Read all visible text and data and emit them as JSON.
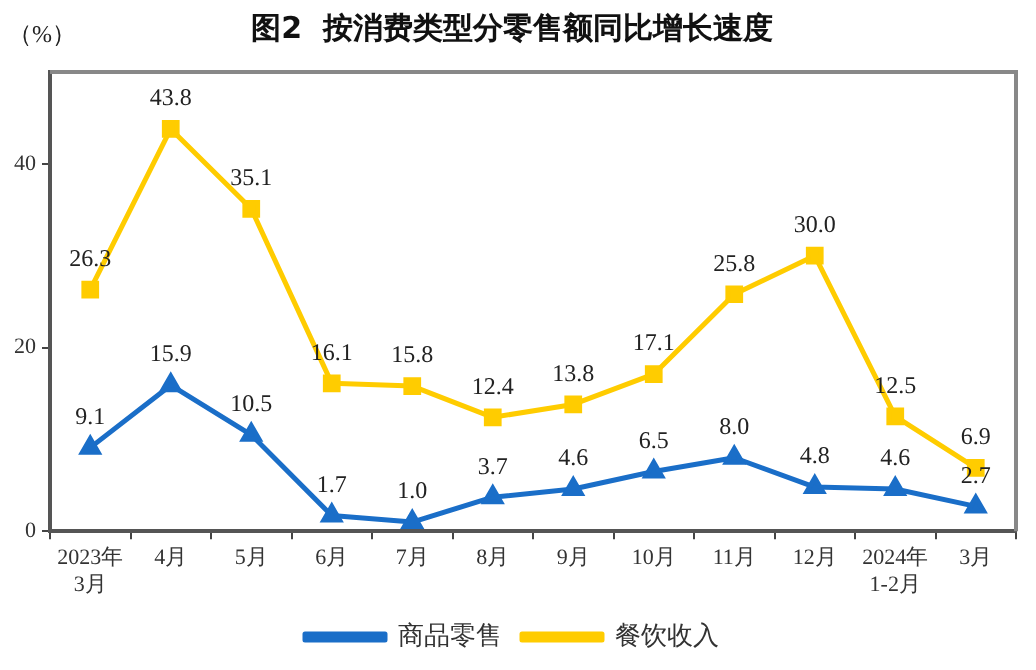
{
  "chart_data": {
    "type": "line",
    "title": "图2  按消费类型分零售额同比增长速度",
    "ylabel": "（%）",
    "categories": [
      "2023年\n3月",
      "4月",
      "5月",
      "6月",
      "7月",
      "8月",
      "9月",
      "10月",
      "11月",
      "12月",
      "2024年\n1-2月",
      "3月"
    ],
    "series": [
      {
        "name": "商品零售",
        "color": "#1a6ec8",
        "marker": "triangle",
        "values": [
          9.1,
          15.9,
          10.5,
          1.7,
          1.0,
          3.7,
          4.6,
          6.5,
          8.0,
          4.8,
          4.6,
          2.7
        ],
        "value_labels": [
          "9.1",
          "15.9",
          "10.5",
          "1.7",
          "1.0",
          "3.7",
          "4.6",
          "6.5",
          "8.0",
          "4.8",
          "4.6",
          "2.7"
        ]
      },
      {
        "name": "餐饮收入",
        "color": "#ffcc00",
        "marker": "square",
        "values": [
          26.3,
          43.8,
          35.1,
          16.1,
          15.8,
          12.4,
          13.8,
          17.1,
          25.8,
          30.0,
          12.5,
          6.9
        ],
        "value_labels": [
          "26.3",
          "43.8",
          "35.1",
          "16.1",
          "15.8",
          "12.4",
          "13.8",
          "17.1",
          "25.8",
          "30.0",
          "12.5",
          "6.9"
        ]
      }
    ],
    "ylim": [
      0,
      50
    ],
    "yticks": [
      0,
      20,
      40
    ],
    "grid": false,
    "legend": "bottom",
    "line_style": "solid"
  }
}
